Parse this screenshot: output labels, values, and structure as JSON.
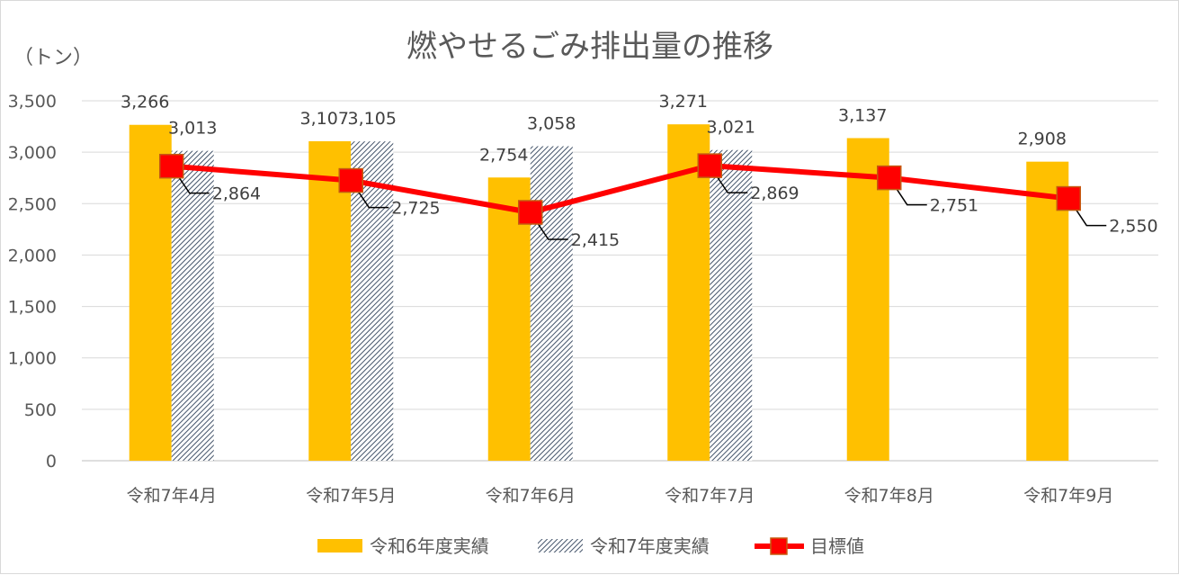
{
  "chart_data": {
    "type": "bar",
    "title": "燃やせるごみ排出量の推移",
    "ylabel": "（トン）",
    "xlabel": "",
    "categories": [
      "令和7年4月",
      "令和7年5月",
      "令和7年6月",
      "令和7年7月",
      "令和7年8月",
      "令和7年9月"
    ],
    "ylim": [
      0,
      3500
    ],
    "yticks": [
      0,
      500,
      1000,
      1500,
      2000,
      2500,
      3000,
      3500
    ],
    "ytick_labels": [
      "0",
      "500",
      "1,000",
      "1,500",
      "2,000",
      "2,500",
      "3,000",
      "3,500"
    ],
    "grid": true,
    "legend_position": "bottom",
    "series": [
      {
        "name": "令和6年度実績",
        "kind": "bar",
        "color": "#FFC000",
        "values": [
          3266,
          3107,
          2754,
          3271,
          3137,
          2908
        ],
        "labels": [
          "3,266",
          "3,107",
          "2,754",
          "3,271",
          "3,137",
          "2,908"
        ]
      },
      {
        "name": "令和7年度実績",
        "kind": "bar",
        "color": "#44546A",
        "pattern": "diagonal-hatch",
        "values": [
          3013,
          3105,
          3058,
          3021,
          null,
          null
        ],
        "labels": [
          "3,013",
          "3,105",
          "3,058",
          "3,021",
          "",
          ""
        ]
      },
      {
        "name": "目標値",
        "kind": "line",
        "color": "#FF0000",
        "marker": "square",
        "values": [
          2864,
          2725,
          2415,
          2869,
          2751,
          2550
        ],
        "labels": [
          "2,864",
          "2,725",
          "2,415",
          "2,869",
          "2,751",
          "2,550"
        ]
      }
    ]
  }
}
